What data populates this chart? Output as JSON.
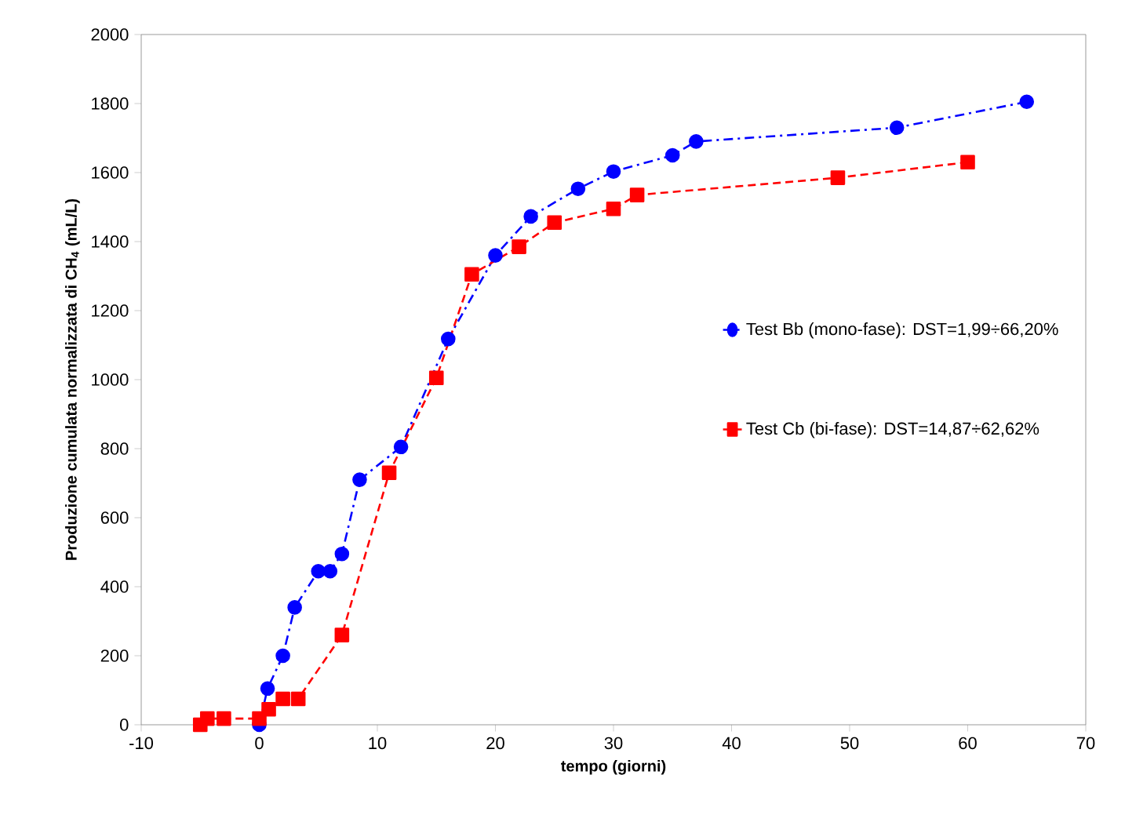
{
  "chart_data": {
    "type": "line",
    "xlabel": "tempo (giorni)",
    "ylabel": "Produzione cumulata normalizzata di CH$_{4}$ (mL/L)",
    "xlim": [
      -10,
      70
    ],
    "xticks": [
      -10,
      0,
      10,
      20,
      30,
      40,
      50,
      60,
      70
    ],
    "ylim": [
      0,
      2000
    ],
    "yticks": [
      0,
      200,
      400,
      600,
      800,
      1000,
      1200,
      1400,
      1600,
      1800,
      2000
    ],
    "grid": false,
    "legend": "right",
    "series": [
      {
        "name": "Test Bb (mono-fase): DST=1,99÷66,20%",
        "color": "#0000ff",
        "marker": "circle",
        "line_style": "dashdot",
        "x": [
          0,
          0.7,
          2,
          3,
          5,
          6,
          7,
          8.5,
          12,
          16,
          20,
          23,
          27,
          30,
          35,
          37,
          54,
          65
        ],
        "values": [
          0,
          105,
          200,
          340,
          445,
          445,
          495,
          710,
          805,
          1118,
          1360,
          1473,
          1553,
          1603,
          1650,
          1690,
          1730,
          1805
        ]
      },
      {
        "name": "Test Cb (bi-fase): DST=14,87÷62,62%",
        "color": "#ff0000",
        "marker": "square",
        "line_style": "dashed",
        "x": [
          -5,
          -4.4,
          -3,
          0,
          0.8,
          2,
          3.3,
          7,
          11,
          15,
          18,
          22,
          25,
          30,
          32,
          49,
          60
        ],
        "values": [
          0,
          18,
          18,
          18,
          45,
          75,
          75,
          260,
          730,
          1005,
          1305,
          1385,
          1455,
          1495,
          1535,
          1585,
          1630
        ]
      }
    ]
  }
}
